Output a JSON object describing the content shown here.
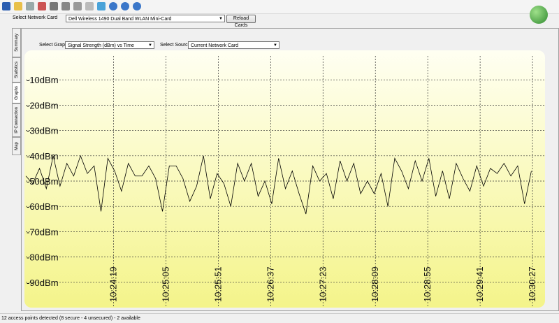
{
  "network_card": {
    "label": "Select Network Card",
    "value": "Dell Wireless 1490 Dual Band WLAN Mini-Card",
    "button": "Reload Cards"
  },
  "tabs": [
    "Summary",
    "Statistics",
    "Graphs",
    "IP Connection",
    "Map"
  ],
  "graph_select": {
    "label": "Select Graph",
    "value": "Signal Strength (dBm) vs Time"
  },
  "source_select": {
    "label": "Select Source",
    "value": "Current Network Card"
  },
  "status": "12 access points detected (8 secure - 4 unsecured) - 2 available",
  "chart_data": {
    "type": "line",
    "grid": true,
    "color": "#000000",
    "ylim": [
      -100,
      0
    ],
    "yticks": [
      {
        "value": -10,
        "label": "-10dBm"
      },
      {
        "value": -20,
        "label": "-20dBm"
      },
      {
        "value": -30,
        "label": "-30dBm"
      },
      {
        "value": -40,
        "label": "-40dBm"
      },
      {
        "value": -50,
        "label": "-50dBm"
      },
      {
        "value": -60,
        "label": "-60dBm"
      },
      {
        "value": -70,
        "label": "-70dBm"
      },
      {
        "value": -80,
        "label": "-80dBm"
      },
      {
        "value": -90,
        "label": "-90dBm"
      }
    ],
    "xlim": [
      37382,
      37838
    ],
    "xticks": [
      {
        "value": 37459,
        "label": "10:24:19"
      },
      {
        "value": 37505,
        "label": "10:25:05"
      },
      {
        "value": 37551,
        "label": "10:25:51"
      },
      {
        "value": 37597,
        "label": "10:26:37"
      },
      {
        "value": 37643,
        "label": "10:27:23"
      },
      {
        "value": 37689,
        "label": "10:28:09"
      },
      {
        "value": 37735,
        "label": "10:28:55"
      },
      {
        "value": 37781,
        "label": "10:29:41"
      },
      {
        "value": 37827,
        "label": "10:30:27"
      }
    ],
    "x": [
      37382,
      37388,
      37394,
      37400,
      37406,
      37412,
      37418,
      37424,
      37430,
      37436,
      37442,
      37448,
      37454,
      37460,
      37466,
      37472,
      37478,
      37484,
      37490,
      37496,
      37502,
      37508,
      37514,
      37520,
      37526,
      37532,
      37538,
      37544,
      37550,
      37556,
      37562,
      37568,
      37574,
      37580,
      37586,
      37592,
      37598,
      37604,
      37610,
      37616,
      37622,
      37628,
      37634,
      37640,
      37646,
      37652,
      37658,
      37664,
      37670,
      37676,
      37682,
      37688,
      37694,
      37700,
      37706,
      37712,
      37718,
      37724,
      37730,
      37736,
      37742,
      37748,
      37754,
      37760,
      37766,
      37772,
      37778,
      37784,
      37790,
      37796,
      37802,
      37808,
      37814,
      37820,
      37826
    ],
    "values": [
      -48,
      -51,
      -45,
      -53,
      -40,
      -52,
      -43,
      -48,
      -40,
      -47,
      -44,
      -62,
      -41,
      -46,
      -54,
      -43,
      -48,
      -48,
      -44,
      -49,
      -62,
      -44,
      -44,
      -49,
      -58,
      -52,
      -40,
      -57,
      -47,
      -51,
      -60,
      -43,
      -50,
      -43,
      -56,
      -50,
      -59,
      -41,
      -53,
      -46,
      -55,
      -63,
      -44,
      -50,
      -47,
      -57,
      -42,
      -50,
      -43,
      -55,
      -50,
      -55,
      -47,
      -60,
      -41,
      -46,
      -53,
      -42,
      -50,
      -41,
      -56,
      -46,
      -57,
      -43,
      -49,
      -54,
      -44,
      -52,
      -45,
      -47,
      -43,
      -48,
      -44,
      -59,
      -46
    ]
  }
}
